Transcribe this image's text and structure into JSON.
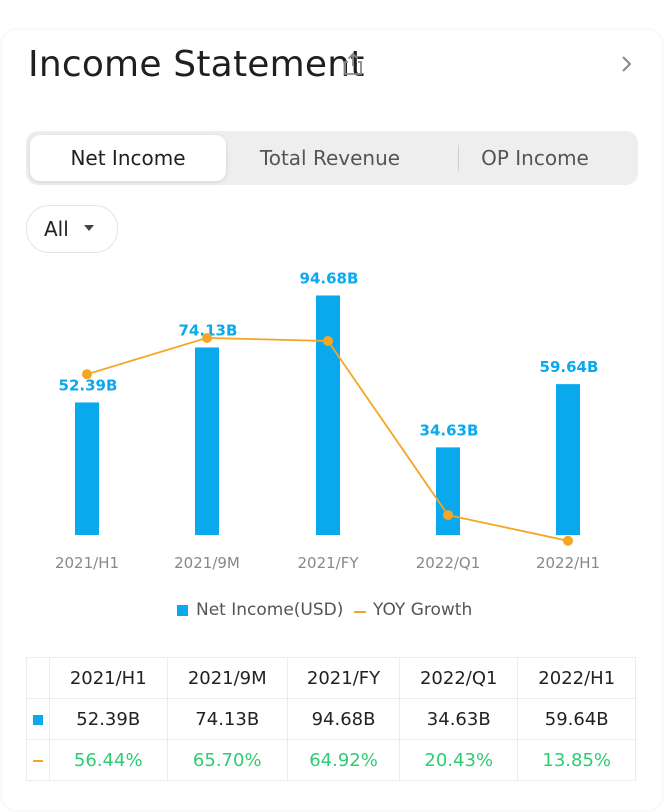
{
  "header": {
    "title": "Income Statement",
    "share_icon": "share-icon",
    "chevron_icon": "chevron-right-icon"
  },
  "tabs": [
    {
      "label": "Net Income",
      "active": true
    },
    {
      "label": "Total Revenue",
      "active": false
    },
    {
      "label": "OP Income",
      "active": false
    }
  ],
  "filter": {
    "selected": "All",
    "caret_icon": "caret-down-icon"
  },
  "colors": {
    "bar": "#0aa9ee",
    "line": "#f5a623",
    "growth_text": "#2ecc71",
    "axis_text": "#888888"
  },
  "legend": {
    "bar_label": "Net Income(USD)",
    "line_label": "YOY Growth"
  },
  "chart_data": {
    "type": "bar",
    "categories": [
      "2021/H1",
      "2021/9M",
      "2021/FY",
      "2022/Q1",
      "2022/H1"
    ],
    "series": [
      {
        "name": "Net Income(USD)",
        "type": "bar",
        "values": [
          52.39,
          74.13,
          94.68,
          34.63,
          59.64
        ],
        "labels": [
          "52.39B",
          "74.13B",
          "94.68B",
          "34.63B",
          "59.64B"
        ]
      },
      {
        "name": "YOY Growth",
        "type": "line",
        "values": [
          56.44,
          65.7,
          64.92,
          20.43,
          13.85
        ]
      }
    ],
    "bar_range": [
      0,
      100
    ],
    "line_range": [
      0,
      80
    ],
    "grid": false,
    "legend_position": "bottom"
  },
  "table": {
    "headers": [
      "2021/H1",
      "2021/9M",
      "2021/FY",
      "2022/Q1",
      "2022/H1"
    ],
    "rows": [
      {
        "marker": "bar-marker",
        "values": [
          "52.39B",
          "74.13B",
          "94.68B",
          "34.63B",
          "59.64B"
        ]
      },
      {
        "marker": "line-marker",
        "values": [
          "56.44%",
          "65.70%",
          "64.92%",
          "20.43%",
          "13.85%"
        ]
      }
    ]
  }
}
